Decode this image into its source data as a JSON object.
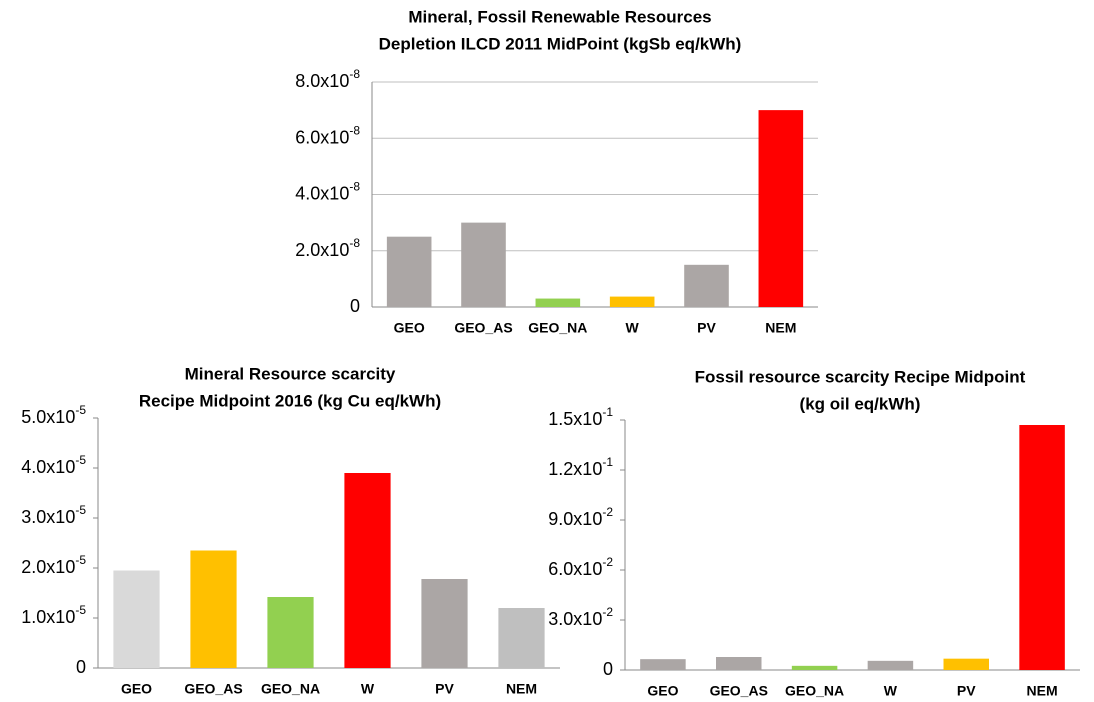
{
  "chart_data": [
    {
      "type": "bar",
      "title": [
        "Mineral, Fossil Renewable  Resources",
        "Depletion ILCD 2011 MidPoint (kgSb eq/kWh)"
      ],
      "categories": [
        "GEO",
        "GEO_AS",
        "GEO_NA",
        "W",
        "PV",
        "NEM"
      ],
      "values": [
        2.5e-08,
        3e-08,
        3e-09,
        3.7e-09,
        1.5e-08,
        7e-08
      ],
      "colors": [
        "#aba6a5",
        "#aba6a5",
        "#92d050",
        "#ffc000",
        "#aba6a5",
        "#ff0000"
      ],
      "ylim": [
        0,
        8e-08
      ],
      "yticks": [
        0,
        {
          "value": 2e-08,
          "label": "2.0x10-8"
        },
        {
          "value": 4e-08,
          "label": "4.0x10-8"
        },
        {
          "value": 6e-08,
          "label": "6.0x10-8"
        },
        {
          "value": 8e-08,
          "label": "8.0x10-8"
        }
      ],
      "grid": true
    },
    {
      "type": "bar",
      "title": [
        "Mineral Resource scarcity",
        "Recipe Midpoint 2016 (kg Cu eq/kWh)"
      ],
      "categories": [
        "GEO",
        "GEO_AS",
        "GEO_NA",
        "W",
        "PV",
        "NEM"
      ],
      "values": [
        1.95e-05,
        2.35e-05,
        1.42e-05,
        3.9e-05,
        1.78e-05,
        1.2e-05
      ],
      "colors": [
        "#d9d9d9",
        "#ffc000",
        "#92d050",
        "#ff0000",
        "#aba6a5",
        "#bfbfbf"
      ],
      "ylim": [
        0,
        5e-05
      ],
      "yticks": [
        0,
        {
          "value": 1e-05,
          "label": "1.0x10-5"
        },
        {
          "value": 2e-05,
          "label": "2.0x10-5"
        },
        {
          "value": 3e-05,
          "label": "3.0x10-5"
        },
        {
          "value": 4e-05,
          "label": "4.0x10-5"
        },
        {
          "value": 5e-05,
          "label": "5.0x10-5"
        }
      ],
      "grid": false
    },
    {
      "type": "bar",
      "title": [
        "Fossil resource scarcity Recipe Midpoint",
        "(kg oil eq/kWh)"
      ],
      "categories": [
        "GEO",
        "GEO_AS",
        "GEO_NA",
        "W",
        "PV",
        "NEM"
      ],
      "values": [
        0.0065,
        0.0078,
        0.0025,
        0.0055,
        0.0068,
        0.147
      ],
      "colors": [
        "#aba6a5",
        "#aba6a5",
        "#92d050",
        "#aba6a5",
        "#ffc000",
        "#ff0000"
      ],
      "ylim": [
        0,
        0.15
      ],
      "yticks": [
        0,
        {
          "value": 0.03,
          "label": "3.0x10-2"
        },
        {
          "value": 0.06,
          "label": "6.0x10-2"
        },
        {
          "value": 0.09,
          "label": "9.0x10-2"
        },
        {
          "value": 0.12,
          "label": "1.2x10-1"
        },
        {
          "value": 0.15,
          "label": "1.5x10-1"
        }
      ],
      "grid": false
    }
  ]
}
